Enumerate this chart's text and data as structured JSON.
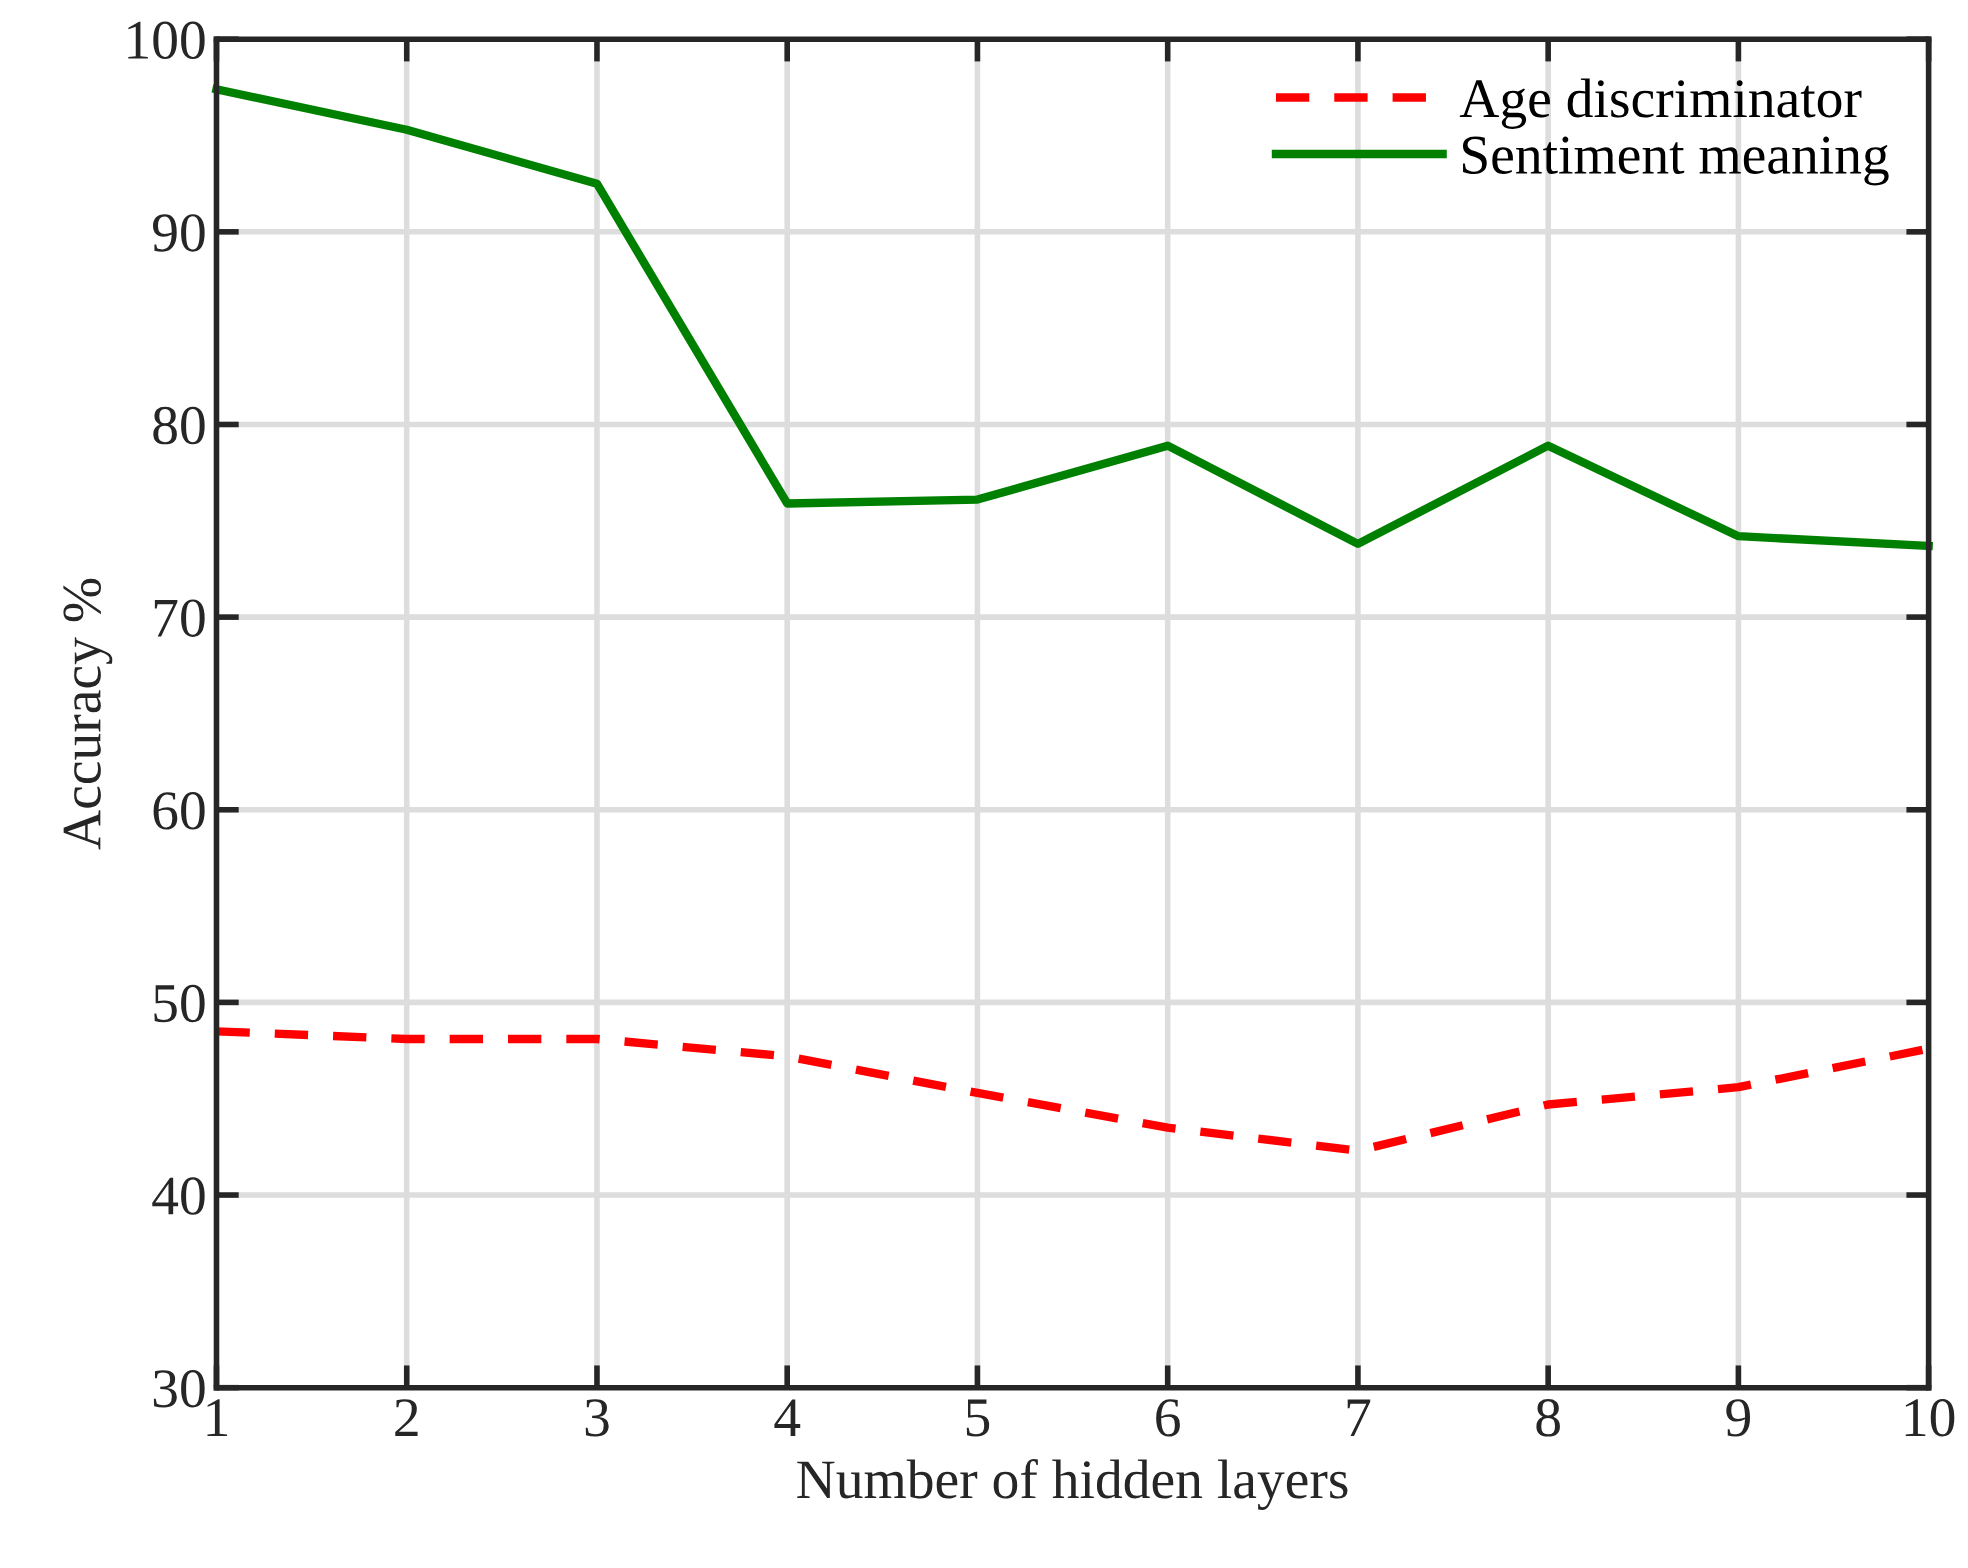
{
  "chart_data": {
    "type": "line",
    "xlabel": "Number of hidden layers",
    "ylabel": "Accuracy %",
    "x": [
      1,
      2,
      3,
      4,
      5,
      6,
      7,
      8,
      9,
      10
    ],
    "series": [
      {
        "name": "Age discriminator",
        "color": "#ff0000",
        "line_style": "dashed",
        "values": [
          48.5,
          48.1,
          48.1,
          47.2,
          45.3,
          43.5,
          42.3,
          44.7,
          45.6,
          47.6
        ]
      },
      {
        "name": "Sentiment meaning",
        "color": "#008000",
        "line_style": "solid",
        "values": [
          97.4,
          95.3,
          92.5,
          75.9,
          76.1,
          78.9,
          73.8,
          78.9,
          74.2,
          73.7
        ]
      }
    ],
    "xlim": [
      1,
      10
    ],
    "xticks": [
      1,
      2,
      3,
      4,
      5,
      6,
      7,
      8,
      9,
      10
    ],
    "ylim": [
      30,
      100
    ],
    "yticks": [
      30,
      40,
      50,
      60,
      70,
      80,
      90,
      100
    ],
    "grid": true,
    "legend": "top right",
    "marker": "none"
  }
}
